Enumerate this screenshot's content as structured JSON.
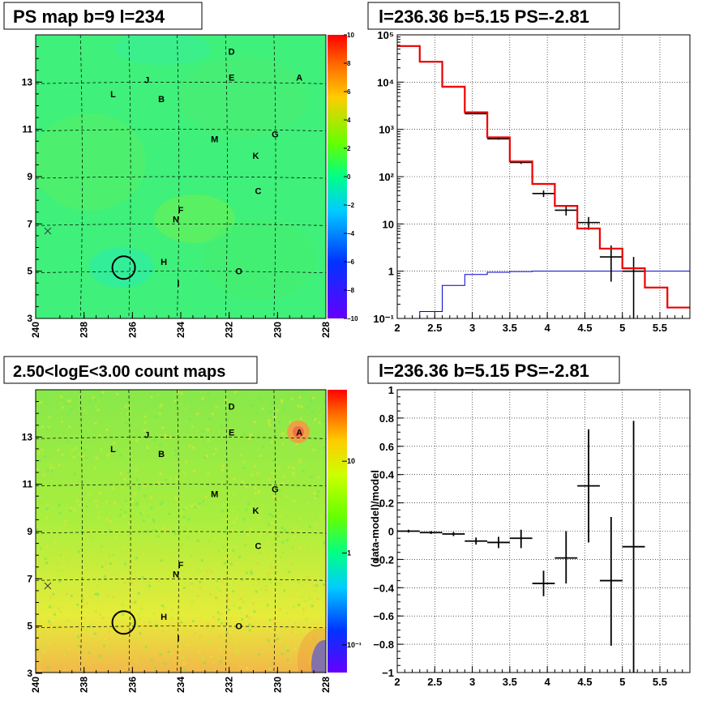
{
  "panels": {
    "ps_map": {
      "title": "PS map b=9 l=234",
      "x_ticks": [
        "240",
        "238",
        "236",
        "234",
        "232",
        "230",
        "228"
      ],
      "y_ticks": [
        "3",
        "5",
        "7",
        "9",
        "11",
        "13"
      ],
      "colorbar_ticks": [
        "10",
        "8",
        "6",
        "4",
        "2",
        "0",
        "−2",
        "−4",
        "−6",
        "−8",
        "−10"
      ],
      "sources": [
        {
          "label": "A",
          "l": 229.1,
          "b": 13.2
        },
        {
          "label": "B",
          "l": 234.8,
          "b": 12.3
        },
        {
          "label": "C",
          "l": 230.8,
          "b": 8.4
        },
        {
          "label": "D",
          "l": 231.9,
          "b": 14.3
        },
        {
          "label": "E",
          "l": 231.9,
          "b": 13.2
        },
        {
          "label": "F",
          "l": 234.0,
          "b": 7.6
        },
        {
          "label": "G",
          "l": 230.1,
          "b": 10.8
        },
        {
          "label": "H",
          "l": 234.7,
          "b": 5.4
        },
        {
          "label": "I",
          "l": 234.1,
          "b": 4.5
        },
        {
          "label": "J",
          "l": 235.4,
          "b": 13.1
        },
        {
          "label": "K",
          "l": 230.9,
          "b": 9.9
        },
        {
          "label": "L",
          "l": 236.8,
          "b": 12.5
        },
        {
          "label": "M",
          "l": 232.6,
          "b": 10.6
        },
        {
          "label": "N",
          "l": 234.2,
          "b": 7.2
        },
        {
          "label": "O",
          "l": 231.6,
          "b": 5.0
        }
      ],
      "marker_circle": {
        "l": 236.36,
        "b": 5.15
      },
      "marker_cross": {
        "l": 239.5,
        "b": 6.7
      }
    },
    "count_map": {
      "title": "2.50<logE<3.00 count maps",
      "colorbar_ticks": [
        "10",
        "1",
        "10⁻¹"
      ]
    },
    "spectrum": {
      "title": "l=236.36 b=5.15 PS=-2.81",
      "x_ticks": [
        "2",
        "2.5",
        "3",
        "3.5",
        "4",
        "4.5",
        "5",
        "5.5"
      ],
      "y_ticks": [
        "10⁻¹",
        "1",
        "10",
        "10²",
        "10³",
        "10⁴",
        "10⁵"
      ]
    },
    "residual": {
      "title": "l=236.36 b=5.15 PS=-2.81",
      "ylabel": "(data-model)/model",
      "x_ticks": [
        "2",
        "2.5",
        "3",
        "3.5",
        "4",
        "4.5",
        "5",
        "5.5"
      ],
      "y_ticks": [
        "1",
        "0.8",
        "0.6",
        "0.4",
        "0.2",
        "0",
        "−0.2",
        "−0.4",
        "−0.6",
        "−0.8",
        "−1"
      ]
    }
  },
  "chart_data": [
    {
      "type": "heatmap",
      "title": "PS map b=9 l=234",
      "x_range": [
        240,
        228
      ],
      "y_range": [
        3,
        15
      ],
      "colorbar_range": [
        -10,
        10
      ]
    },
    {
      "type": "heatmap",
      "title": "2.50<logE<3.00 count maps",
      "x_range": [
        240,
        228
      ],
      "y_range": [
        3,
        15
      ],
      "colorbar_scale": "log",
      "colorbar_range": [
        0.05,
        60
      ]
    },
    {
      "type": "line",
      "title": "l=236.36 b=5.15 PS=-2.81",
      "x_range": [
        2,
        5.9
      ],
      "y_scale": "log",
      "y_range": [
        0.1,
        100000
      ],
      "grid": true,
      "model_total_steps": {
        "edges": [
          2,
          2.3,
          2.6,
          2.9,
          3.2,
          3.5,
          3.8,
          4.1,
          4.4,
          4.7,
          5.0,
          5.3,
          5.6,
          5.9
        ],
        "values": [
          58000,
          27000,
          8000,
          2300,
          680,
          210,
          70,
          24,
          8,
          3,
          1.15,
          0.45,
          0.17
        ]
      },
      "model_source_steps": {
        "edges": [
          2,
          2.3,
          2.6,
          2.9,
          3.2,
          3.5,
          3.8,
          4.1,
          4.4,
          4.7,
          5.0,
          5.3,
          5.6,
          5.9
        ],
        "values": [
          0.1,
          0.14,
          0.5,
          0.85,
          0.95,
          0.98,
          1.0,
          1.0,
          1.0,
          1.0,
          1.0,
          1.0,
          1.0
        ]
      },
      "data_points": [
        {
          "x": 2.15,
          "y": 58000,
          "ylo": 57500,
          "yhi": 58500
        },
        {
          "x": 2.45,
          "y": 26800,
          "ylo": 26500,
          "yhi": 27100
        },
        {
          "x": 2.75,
          "y": 7900,
          "ylo": 7800,
          "yhi": 8000
        },
        {
          "x": 3.05,
          "y": 2150,
          "ylo": 2100,
          "yhi": 2200
        },
        {
          "x": 3.35,
          "y": 630,
          "ylo": 605,
          "yhi": 655
        },
        {
          "x": 3.65,
          "y": 200,
          "ylo": 186,
          "yhi": 214
        },
        {
          "x": 3.95,
          "y": 44,
          "ylo": 37,
          "yhi": 51
        },
        {
          "x": 4.25,
          "y": 19.5,
          "ylo": 15,
          "yhi": 24
        },
        {
          "x": 4.55,
          "y": 10.7,
          "ylo": 7.5,
          "yhi": 14
        },
        {
          "x": 4.85,
          "y": 2.0,
          "ylo": 0.6,
          "yhi": 3.5
        },
        {
          "x": 5.15,
          "y": 1.0,
          "ylo": 0.1,
          "yhi": 2.0
        }
      ]
    },
    {
      "type": "scatter",
      "title": "l=236.36 b=5.15 PS=-2.81",
      "ylabel": "(data-model)/model",
      "x_range": [
        2,
        5.9
      ],
      "y_range": [
        -1,
        1
      ],
      "grid": true,
      "points": [
        {
          "x": 2.15,
          "y": 0.0,
          "ylo": -0.01,
          "yhi": 0.01
        },
        {
          "x": 2.45,
          "y": -0.01,
          "ylo": -0.02,
          "yhi": 0.0
        },
        {
          "x": 2.75,
          "y": -0.02,
          "ylo": -0.035,
          "yhi": -0.005
        },
        {
          "x": 3.05,
          "y": -0.07,
          "ylo": -0.095,
          "yhi": -0.045
        },
        {
          "x": 3.35,
          "y": -0.08,
          "ylo": -0.12,
          "yhi": -0.04
        },
        {
          "x": 3.65,
          "y": -0.05,
          "ylo": -0.12,
          "yhi": 0.01
        },
        {
          "x": 3.95,
          "y": -0.37,
          "ylo": -0.46,
          "yhi": -0.28
        },
        {
          "x": 4.25,
          "y": -0.19,
          "ylo": -0.37,
          "yhi": 0.0
        },
        {
          "x": 4.55,
          "y": 0.32,
          "ylo": -0.08,
          "yhi": 0.72
        },
        {
          "x": 4.85,
          "y": -0.35,
          "ylo": -0.81,
          "yhi": 0.1
        },
        {
          "x": 5.15,
          "y": -0.11,
          "ylo": -1.0,
          "yhi": 0.78
        }
      ],
      "x_halfwidth": 0.15
    }
  ]
}
